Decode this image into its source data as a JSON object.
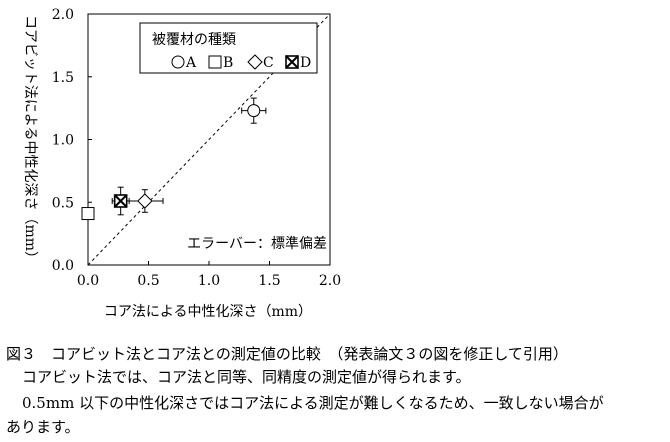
{
  "chart_data": {
    "type": "scatter",
    "xlabel": "コア法による中性化深さ（mm）",
    "ylabel": "コアビット法による中性化深さ（mm）",
    "xlim": [
      0,
      2.0
    ],
    "ylim": [
      0,
      2.0
    ],
    "xticks": [
      "0.0",
      "0.5",
      "1.0",
      "1.5",
      "2.0"
    ],
    "yticks": [
      "0.0",
      "0.5",
      "1.0",
      "1.5",
      "2.0"
    ],
    "grid": false,
    "legend": {
      "title": "被覆材の種類",
      "placement": "top",
      "entries": [
        {
          "symbol": "circle",
          "label": "A"
        },
        {
          "symbol": "square",
          "label": "B"
        },
        {
          "symbol": "diamond",
          "label": "C"
        },
        {
          "symbol": "crossed-square",
          "label": "D"
        }
      ]
    },
    "annotation": "エラーバー：標準偏差",
    "reference_line": {
      "type": "y=x",
      "style": "dashed"
    },
    "series": [
      {
        "name": "A",
        "symbol": "circle",
        "points": [
          {
            "x": 1.37,
            "y": 1.23,
            "xerr": 0.1,
            "yerr": 0.1
          }
        ]
      },
      {
        "name": "B",
        "symbol": "square",
        "points": [
          {
            "x": 0.0,
            "y": 0.41,
            "xerr": 0,
            "yerr": 0
          }
        ]
      },
      {
        "name": "C",
        "symbol": "diamond",
        "points": [
          {
            "x": 0.47,
            "y": 0.51,
            "xerr": 0.15,
            "yerr": 0.09
          }
        ]
      },
      {
        "name": "D",
        "symbol": "crossed-square",
        "points": [
          {
            "x": 0.27,
            "y": 0.51,
            "xerr": 0.07,
            "yerr": 0.11
          }
        ]
      }
    ]
  },
  "caption": {
    "title": "図３　コアビット法とコア法との測定値の比較　（発表論文３の図を修正して引用）",
    "line1": "コアビット法では、コア法と同等、同精度の測定値が得られます。",
    "line2": "0.5mm 以下の中性化深さではコア法による測定が難しくなるため、一致しない場合が",
    "line3": "あります。"
  }
}
